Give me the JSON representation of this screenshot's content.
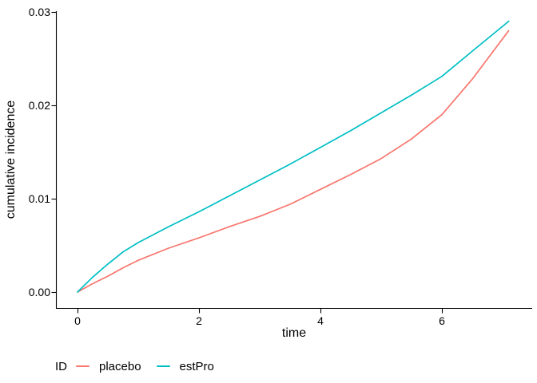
{
  "chart_data": {
    "type": "line",
    "title": "",
    "xlabel": "time",
    "ylabel": "cumulative incidence",
    "xlim": [
      0,
      7.1
    ],
    "ylim": [
      0,
      0.03
    ],
    "grid": false,
    "theme": "classic",
    "x_ticks": [
      0,
      2,
      4,
      6
    ],
    "x_tick_labels": [
      "0",
      "2",
      "4",
      "6"
    ],
    "y_ticks": [
      0,
      0.01,
      0.02,
      0.03
    ],
    "y_tick_labels": [
      "0.00",
      "0.01",
      "0.02",
      "0.03"
    ],
    "axis_color": "#000000",
    "legend": {
      "title": "ID",
      "position": "bottom-left",
      "entries": [
        {
          "label": "placebo",
          "color": "#F8766D"
        },
        {
          "label": "estPro",
          "color": "#00BFC4"
        }
      ]
    },
    "series": [
      {
        "name": "placebo",
        "color": "#F8766D",
        "x": [
          0,
          0.25,
          0.5,
          0.75,
          1,
          1.5,
          2,
          2.5,
          3,
          3.5,
          4,
          4.5,
          5,
          5.5,
          6,
          6.5,
          7.1
        ],
        "y": [
          0,
          0.0009,
          0.0017,
          0.0026,
          0.0034,
          0.0047,
          0.0058,
          0.007,
          0.0081,
          0.0094,
          0.011,
          0.0126,
          0.0143,
          0.0164,
          0.019,
          0.0228,
          0.028
        ]
      },
      {
        "name": "estPro",
        "color": "#00BFC4",
        "x": [
          0,
          0.25,
          0.5,
          0.75,
          1,
          1.5,
          2,
          2.5,
          3,
          3.5,
          4,
          4.5,
          5,
          5.5,
          6,
          6.5,
          7.1
        ],
        "y": [
          0,
          0.0016,
          0.003,
          0.0043,
          0.0053,
          0.007,
          0.0086,
          0.0103,
          0.012,
          0.0137,
          0.0155,
          0.0173,
          0.0192,
          0.0211,
          0.0231,
          0.0258,
          0.029
        ]
      }
    ]
  }
}
